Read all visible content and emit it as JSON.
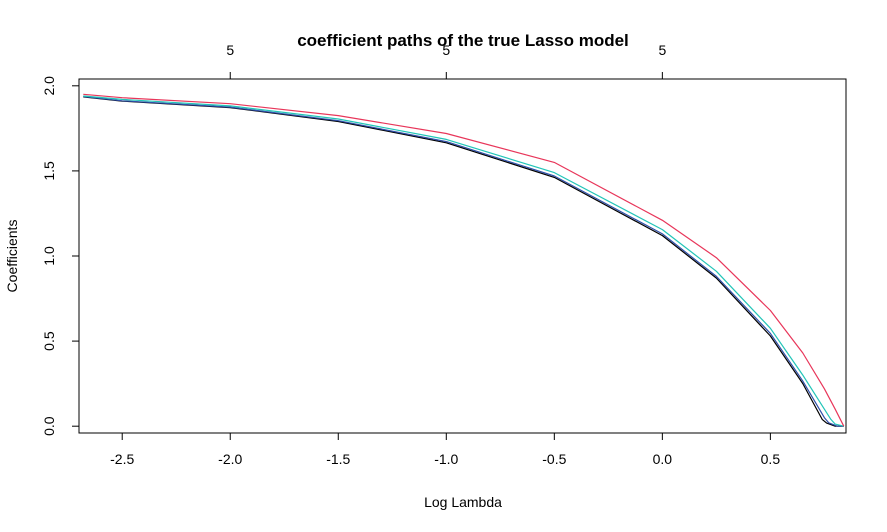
{
  "chart_data": {
    "type": "line",
    "title": "coefficient paths of the true Lasso model",
    "xlabel": "Log Lambda",
    "ylabel": "Coefficients",
    "xlim": [
      -2.7,
      0.85
    ],
    "ylim": [
      -0.04,
      2.04
    ],
    "x_ticks": [
      -2.5,
      -2.0,
      -1.5,
      -1.0,
      -0.5,
      0.0,
      0.5
    ],
    "x_tick_labels": [
      "-2.5",
      "-2.0",
      "-1.5",
      "-1.0",
      "-0.5",
      "0.0",
      "0.5"
    ],
    "y_ticks": [
      0.0,
      0.5,
      1.0,
      1.5,
      2.0
    ],
    "y_tick_labels": [
      "0.0",
      "0.5",
      "1.0",
      "1.5",
      "2.0"
    ],
    "top_axis": {
      "ticks": [
        -2.0,
        -1.0,
        0.0
      ],
      "labels": [
        "5",
        "5",
        "5"
      ]
    },
    "grid": false,
    "series": [
      {
        "color": "#000000",
        "x": [
          -2.68,
          -2.5,
          -2.0,
          -1.5,
          -1.0,
          -0.5,
          0.0,
          0.25,
          0.5,
          0.65,
          0.74,
          0.76,
          0.8,
          0.84
        ],
        "y": [
          1.935,
          1.91,
          1.872,
          1.79,
          1.665,
          1.462,
          1.12,
          0.87,
          0.53,
          0.25,
          0.04,
          0.018,
          0.0,
          0.0
        ]
      },
      {
        "color": "#2F4FA8",
        "x": [
          -2.68,
          -2.5,
          -2.0,
          -1.5,
          -1.0,
          -0.5,
          0.0,
          0.25,
          0.5,
          0.65,
          0.75,
          0.77,
          0.81,
          0.84
        ],
        "y": [
          1.937,
          1.912,
          1.875,
          1.795,
          1.672,
          1.47,
          1.13,
          0.88,
          0.545,
          0.265,
          0.05,
          0.02,
          0.0,
          0.0
        ]
      },
      {
        "color": "#22C5B8",
        "x": [
          -2.68,
          -2.5,
          -2.0,
          -1.5,
          -1.0,
          -0.5,
          0.0,
          0.25,
          0.5,
          0.65,
          0.78,
          0.8,
          0.84
        ],
        "y": [
          1.94,
          1.92,
          1.882,
          1.805,
          1.685,
          1.49,
          1.155,
          0.91,
          0.575,
          0.3,
          0.04,
          0.012,
          0.0
        ]
      },
      {
        "color": "#E8365A",
        "x": [
          -2.68,
          -2.5,
          -2.0,
          -1.5,
          -1.0,
          -0.5,
          0.0,
          0.25,
          0.5,
          0.65,
          0.75,
          0.8,
          0.84
        ],
        "y": [
          1.95,
          1.93,
          1.895,
          1.825,
          1.72,
          1.55,
          1.21,
          0.99,
          0.68,
          0.43,
          0.22,
          0.1,
          0.0
        ]
      }
    ]
  }
}
